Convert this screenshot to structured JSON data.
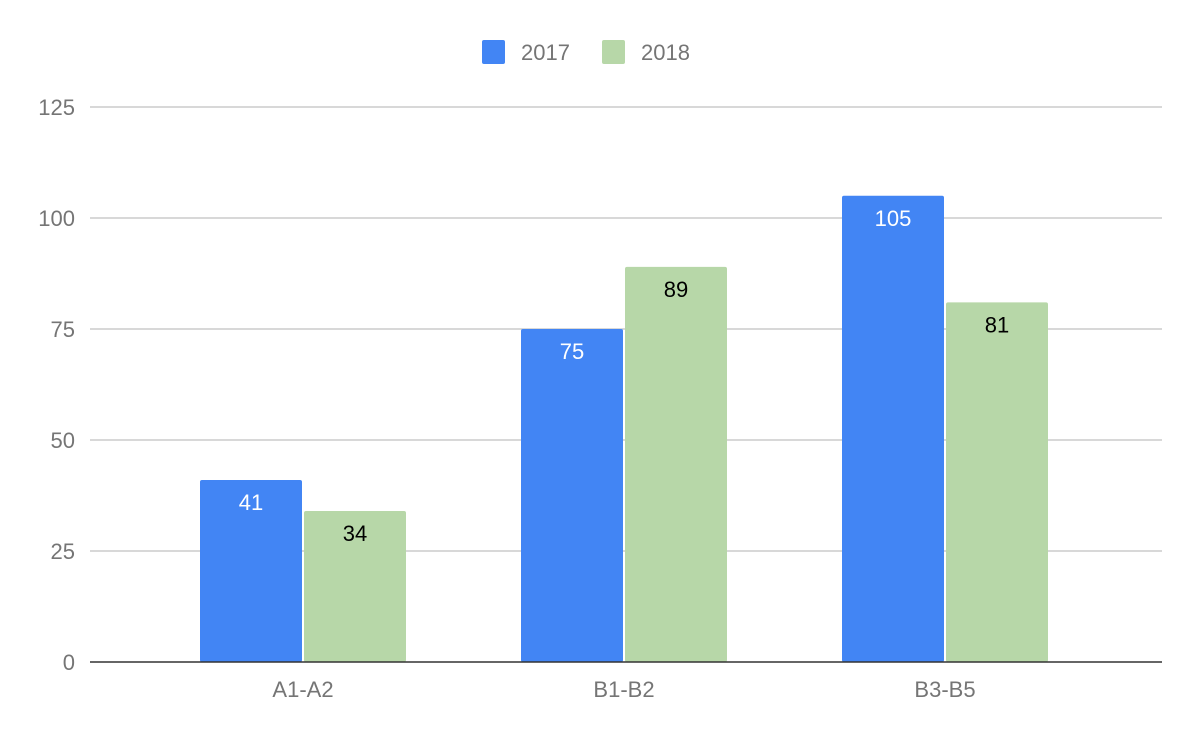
{
  "chart_data": {
    "type": "bar",
    "title": "",
    "xlabel": "",
    "ylabel": "",
    "categories": [
      "A1-A2",
      "B1-B2",
      "B3-B5"
    ],
    "series": [
      {
        "name": "2017",
        "values": [
          41,
          75,
          105
        ],
        "color": "#4285f4",
        "label_color": "#ffffff"
      },
      {
        "name": "2018",
        "values": [
          34,
          89,
          81
        ],
        "color": "#b7d7a8",
        "label_color": "#000000"
      }
    ],
    "ylim": [
      0,
      125
    ],
    "yticks": [
      "0",
      "25",
      "50",
      "75",
      "100",
      "125"
    ],
    "grid": true,
    "legend": "top-center",
    "data_labels": true
  }
}
